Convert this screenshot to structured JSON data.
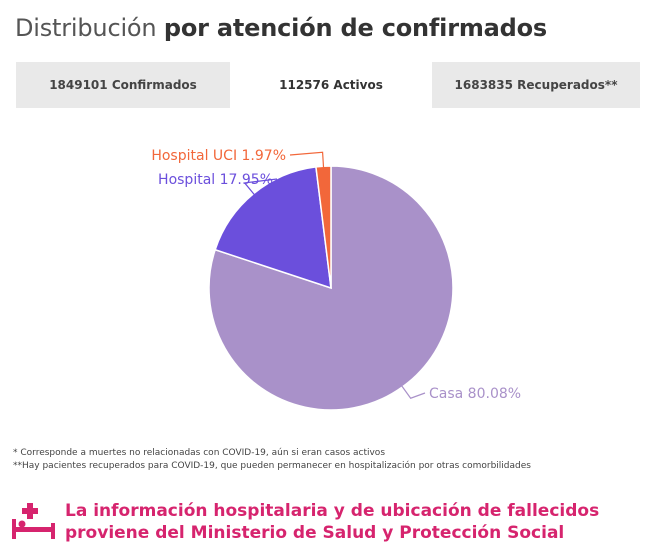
{
  "title": {
    "regular": "Distribución",
    "bold": "por atención de confirmados"
  },
  "tabs": [
    {
      "label": "1849101 Confirmados"
    },
    {
      "label": "112576 Activos",
      "active": true
    },
    {
      "label": "1683835 Recuperados**"
    }
  ],
  "chart_data": {
    "type": "pie",
    "slices": [
      {
        "label": "Casa 80.08%",
        "value": 80.08,
        "color": "#a991c9"
      },
      {
        "label": "Hospital 17.95%",
        "value": 17.95,
        "color": "#6b4fdc"
      },
      {
        "label": "Hospital UCI 1.97%",
        "value": 1.97,
        "color": "#f2673a"
      }
    ]
  },
  "footnotes": [
    "* Corresponde a muertes no relacionadas con COVID-19, aún si eran casos activos",
    "**Hay pacientes recuperados para COVID-19, que pueden permanecer en hospitalización por otras comorbilidades"
  ],
  "banner": {
    "line1": "La información hospitalaria y de ubicación de fallecidos",
    "line2": "proviene del Ministerio de Salud y Protección Social",
    "color": "#d6246e",
    "icon": "hospital-bed-icon"
  }
}
